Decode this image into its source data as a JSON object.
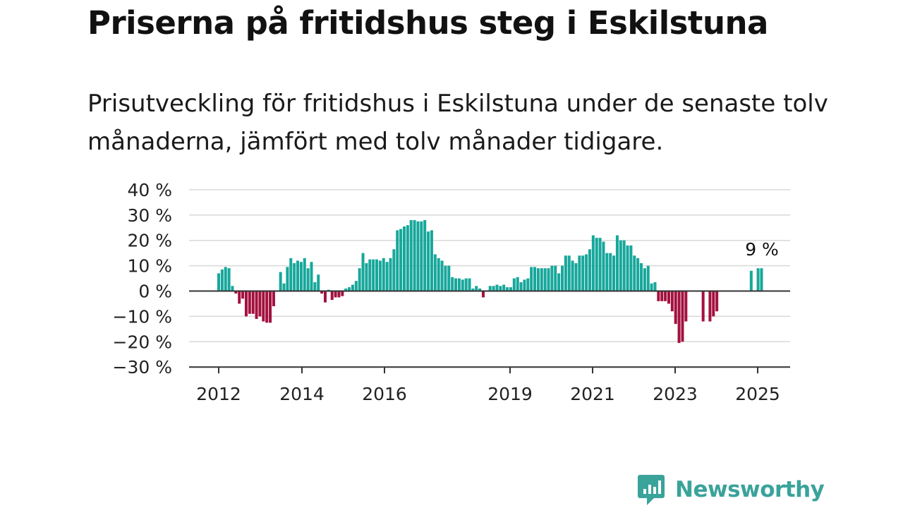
{
  "header": {
    "title": "Priserna på fritidshus steg i Eskilstuna",
    "subtitle": "Prisutveckling för fritidshus i Eskilstuna under de senaste tolv månaderna, jämfört med tolv månader tidigare."
  },
  "brand": {
    "name": "Newsworthy",
    "color": "#3aa39a"
  },
  "colors": {
    "positive": "#17a79b",
    "negative": "#a3113f",
    "grid": "#d9d9d9",
    "zero": "#333333"
  },
  "chart_data": {
    "type": "bar",
    "ylim": [
      -30,
      40
    ],
    "y_ticks": [
      40,
      30,
      20,
      10,
      0,
      -10,
      -20,
      -30
    ],
    "y_tick_labels": [
      "40 %",
      "30 %",
      "20 %",
      "10 %",
      "0 %",
      "−10 %",
      "−20 %",
      "−30 %"
    ],
    "x_ticks": [
      "2012",
      "2014",
      "2016",
      "2019",
      "2021",
      "2023",
      "2025"
    ],
    "annotation": "9 %",
    "series": [
      {
        "values": [
          7,
          8.5,
          9.5,
          9,
          2,
          -1,
          -5,
          -3,
          -10,
          -9,
          -9,
          -11,
          -10,
          -12,
          -12.5,
          -12.5,
          -6,
          null,
          7.5,
          3,
          9.5,
          13,
          11,
          12,
          11.5,
          13,
          9,
          11.5,
          3.5,
          6.5,
          -1,
          -4.5,
          0.5,
          -3.5,
          -2.5,
          -2.5,
          -2,
          1,
          1.5,
          2.5,
          4,
          9,
          15,
          11,
          12.5,
          12.5,
          12.5,
          12,
          13,
          11.5,
          13,
          16.5,
          24,
          24.5,
          25.5,
          26,
          28,
          28,
          27.5,
          27.5,
          28,
          23.5,
          24,
          14.5,
          13,
          12,
          10,
          10,
          5.5,
          5,
          5,
          4.5,
          5,
          5,
          1,
          2,
          1,
          -2.5,
          null,
          2,
          2,
          2.5,
          2,
          2.5,
          1.5,
          1.5,
          5,
          5.5,
          3.5,
          4.5,
          5,
          9.5,
          9.5,
          9,
          9,
          9,
          9,
          10,
          10,
          7,
          10,
          14,
          14,
          12,
          11,
          14,
          14,
          14.5,
          16.5,
          22,
          21,
          21,
          19.5,
          15,
          15,
          14,
          22,
          20,
          20,
          18,
          18,
          14,
          13,
          11,
          9,
          10,
          3,
          3.5,
          -4,
          -4,
          -4,
          -5,
          -8,
          -13,
          -20.5,
          -20,
          -12,
          null,
          null,
          null,
          null,
          -12,
          null,
          -12,
          -10,
          -8,
          null,
          null,
          null,
          null,
          null,
          null,
          null,
          null,
          null,
          8,
          null,
          9,
          9
        ]
      }
    ]
  }
}
